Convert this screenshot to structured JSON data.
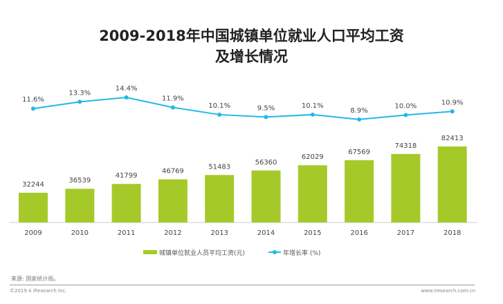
{
  "chart_data": {
    "type": "bar+line",
    "title": "2009-2018年中国城镇单位就业人口平均工资",
    "subtitle": "及增长情况",
    "categories": [
      "2009",
      "2010",
      "2011",
      "2012",
      "2013",
      "2014",
      "2015",
      "2016",
      "2017",
      "2018"
    ],
    "series": [
      {
        "name": "城镇单位就业人员平均工资(元)",
        "type": "bar",
        "color": "#a6c92a",
        "values": [
          32244,
          36539,
          41799,
          46769,
          51483,
          56360,
          62029,
          67569,
          74318,
          82413
        ]
      },
      {
        "name": "年增长率 (%)",
        "type": "line",
        "color": "#22b8e8",
        "values": [
          11.6,
          13.3,
          14.4,
          11.9,
          10.1,
          9.5,
          10.1,
          8.9,
          10.0,
          10.9
        ],
        "labels": [
          "11.6%",
          "13.3%",
          "14.4%",
          "11.9%",
          "10.1%",
          "9.5%",
          "10.1%",
          "8.9%",
          "10.0%",
          "10.9%"
        ]
      }
    ],
    "legend": "bottom"
  },
  "footer": {
    "source": "来源: 国家统计局。",
    "copyright": "©2019.4 iResearch Inc.",
    "url": "www.iresearch.com.cn"
  }
}
